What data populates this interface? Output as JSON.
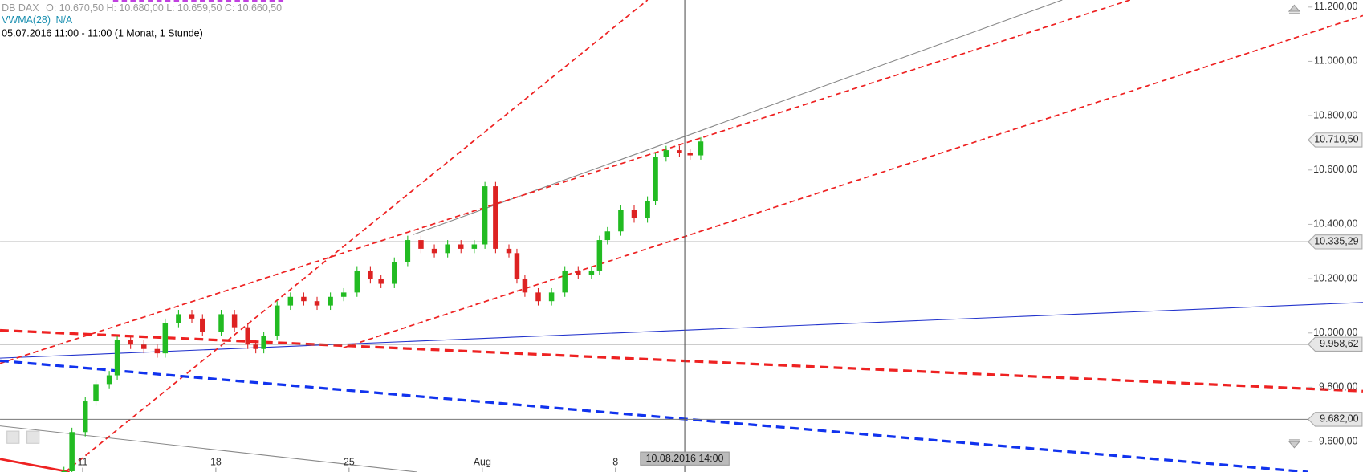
{
  "chart_data": {
    "type": "candlestick",
    "header": {
      "symbol": "DB DAX",
      "ohlc": "O: 10.670,50  H: 10.680,00  L: 10.659,50  C: 10.660,50",
      "indicator": "VWMA(28)",
      "indicator_value": "N/A",
      "period": "05.07.2016 11:00 - 11:00 (1 Monat, 1 Stunde)"
    },
    "x": [
      -0.7,
      -0.4,
      0.1,
      0.5,
      1.0,
      1.3,
      1.8,
      2.3,
      2.8,
      3.1,
      3.6,
      4.1,
      4.5,
      5.2,
      5.7,
      6.2,
      6.5,
      6.8,
      7.3,
      7.8,
      8.3,
      8.8,
      9.3,
      9.8,
      10.3,
      10.8,
      11.2,
      11.7,
      12.2,
      12.7,
      13.2,
      13.7,
      14.2,
      14.7,
      15.1,
      15.5,
      16.0,
      16.3,
      16.6,
      17.1,
      17.6,
      18.1,
      18.6,
      19.1,
      19.4,
      19.7,
      20.2,
      20.7,
      21.2,
      21.5,
      21.9,
      22.4,
      22.8,
      23.2
    ],
    "values": [
      9491,
      9635,
      9748,
      9812,
      9844,
      9973,
      9957,
      9941,
      9925,
      10037,
      10069,
      10053,
      10005,
      10069,
      10021,
      9957,
      9941,
      9989,
      10101,
      10133,
      10117,
      10101,
      10133,
      10149,
      10230,
      10198,
      10181,
      10262,
      10342,
      10310,
      10294,
      10326,
      10310,
      10326,
      10540,
      10310,
      10294,
      10198,
      10149,
      10117,
      10149,
      10230,
      10214,
      10230,
      10342,
      10374,
      10454,
      10422,
      10487,
      10647,
      10673,
      10663,
      10654,
      10705
    ],
    "up_color": "#22bb22",
    "down_color": "#dd2222",
    "xlim": [
      -3.1,
      46
    ],
    "xticks": [
      {
        "value": 0,
        "label": "11"
      },
      {
        "value": 5,
        "label": "18"
      },
      {
        "value": 10,
        "label": "25"
      },
      {
        "value": 15,
        "label": "Aug"
      },
      {
        "value": 20,
        "label": "8"
      }
    ],
    "ylim": [
      9488,
      11226
    ],
    "yticks": [
      {
        "value": 11200,
        "label": "11.200,00"
      },
      {
        "value": 11000,
        "label": "11.000,00"
      },
      {
        "value": 10800,
        "label": "10.800,00"
      },
      {
        "value": 10600,
        "label": "10.600,00"
      },
      {
        "value": 10400,
        "label": "10.400,00"
      },
      {
        "value": 10200,
        "label": "10.200,00"
      },
      {
        "value": 10000,
        "label": "10.000,00"
      },
      {
        "value": 9800,
        "label": "9.800,00"
      },
      {
        "value": 9600,
        "label": "9.600,00"
      }
    ],
    "levels": [
      {
        "value": 10335.29,
        "label": "10.335,29"
      },
      {
        "value": 9958.62,
        "label": "9.958,62"
      },
      {
        "value": 9682.0,
        "label": "9.682,00"
      }
    ],
    "last_price": {
      "value": 10710.5,
      "label": "10.710,50"
    },
    "crosshair": {
      "x": 22.6,
      "label": "10.08.2016 14:00"
    }
  }
}
